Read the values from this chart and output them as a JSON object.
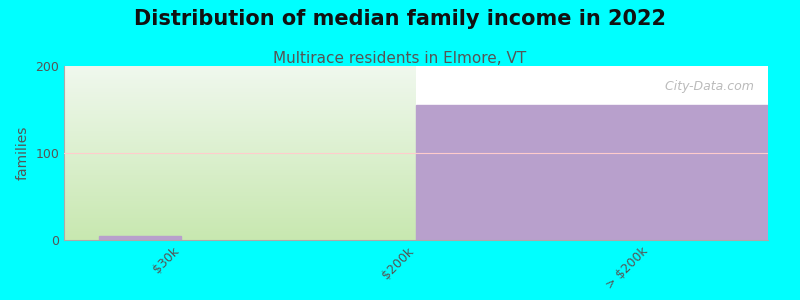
{
  "title": "Distribution of median family income in 2022",
  "subtitle": "Multirace residents in Elmore, VT",
  "title_fontsize": 15,
  "subtitle_fontsize": 11,
  "background_color": "#00FFFF",
  "categories": [
    "$30k",
    "$200k",
    "> $200k"
  ],
  "ylim": [
    0,
    200
  ],
  "yticks": [
    0,
    100,
    200
  ],
  "ylabel": "families",
  "color_left_bottom": "#c8e8b0",
  "color_left_top": "#f0f8ee",
  "color_right": "#b8a0cc",
  "small_bar_color": "#b8a0cc",
  "small_bar_height": 5,
  "right_bar_height": 155,
  "watermark": "  City-Data.com",
  "plot_bg_color": "#ffffff",
  "tick_color": "#555555",
  "ylabel_color": "#555555",
  "subtitle_color": "#555555",
  "title_color": "#111111",
  "grid_color": "#dddddd",
  "hline_color": "#ffcccc",
  "hline_y": 100
}
